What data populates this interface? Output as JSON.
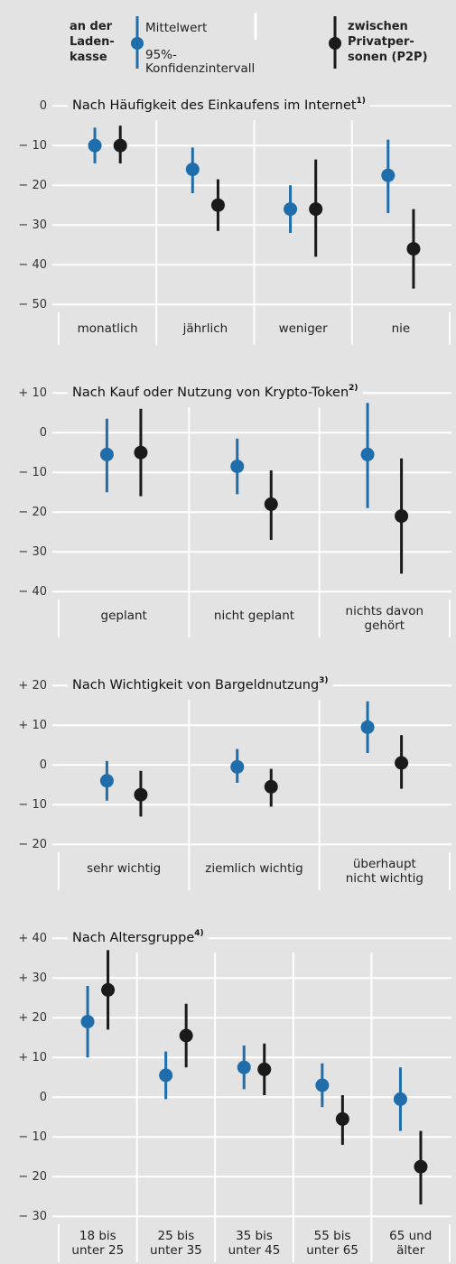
{
  "legend": {
    "series": [
      {
        "name": "an der\nLaden-\nkasse",
        "color": "#1f6eab"
      },
      {
        "name": "zwischen\nPrivatper-\nsonen (P2P)",
        "color": "#1a1a1a"
      }
    ],
    "mean": "Mittelwert",
    "ci": "95%-\nKonfidenzintervall"
  },
  "chart_data": [
    {
      "type": "errorbar",
      "title": "Nach Häufigkeit des Einkaufens im Internet",
      "title_note": "1)",
      "categories": [
        "monatlich",
        "jährlich",
        "weniger",
        "nie"
      ],
      "series": [
        {
          "values": [
            -10,
            -16,
            -26,
            -17.5
          ],
          "high": [
            -5.5,
            -10.5,
            -20,
            -8.5
          ],
          "low": [
            -14.5,
            -22,
            -32,
            -27
          ]
        },
        {
          "values": [
            -10,
            -25,
            -26,
            -36
          ],
          "high": [
            -5,
            -18.5,
            -13.5,
            -26
          ],
          "low": [
            -14.5,
            -31.5,
            -38,
            -46
          ]
        }
      ],
      "ylim": [
        -52,
        3
      ],
      "yticks": [
        0,
        {
          "value": -10,
          "label": "− 10"
        },
        {
          "value": -20,
          "label": "− 20"
        },
        {
          "value": -30,
          "label": "− 30"
        },
        {
          "value": -40,
          "label": "− 40"
        },
        {
          "value": -50,
          "label": "− 50"
        }
      ],
      "grid": true
    },
    {
      "type": "errorbar",
      "title": "Nach Kauf oder Nutzung von Krypto-Token",
      "title_note": "2)",
      "categories": [
        "geplant",
        "nicht geplant",
        "nichts davon\ngehört"
      ],
      "series": [
        {
          "values": [
            -5.5,
            -8.5,
            -5.5
          ],
          "high": [
            3.5,
            -1.5,
            7.5
          ],
          "low": [
            -15,
            -15.5,
            -19
          ]
        },
        {
          "values": [
            -5,
            -18,
            -21
          ],
          "high": [
            6,
            -9.5,
            -6.5
          ],
          "low": [
            -16,
            -27,
            -35.5
          ]
        }
      ],
      "ylim": [
        -42,
        13
      ],
      "yticks": [
        {
          "value": 10,
          "label": "+ 10"
        },
        0,
        {
          "value": -10,
          "label": "− 10"
        },
        {
          "value": -20,
          "label": "− 20"
        },
        {
          "value": -30,
          "label": "− 30"
        },
        {
          "value": -40,
          "label": "− 40"
        }
      ],
      "grid": true
    },
    {
      "type": "errorbar",
      "title": "Nach Wichtigkeit von Bargeldnutzung",
      "title_note": "3)",
      "categories": [
        "sehr wichtig",
        "ziemlich wichtig",
        "überhaupt\nnicht wichtig"
      ],
      "series": [
        {
          "values": [
            -4,
            -0.5,
            9.5
          ],
          "high": [
            1,
            4,
            16
          ],
          "low": [
            -9,
            -4.5,
            3
          ]
        },
        {
          "values": [
            -7.5,
            -5.5,
            0.5
          ],
          "high": [
            -1.5,
            -1,
            7.5
          ],
          "low": [
            -13,
            -10.5,
            -6
          ]
        }
      ],
      "ylim": [
        -22,
        23
      ],
      "yticks": [
        {
          "value": 20,
          "label": "+ 20"
        },
        {
          "value": 10,
          "label": "+ 10"
        },
        0,
        {
          "value": -10,
          "label": "− 10"
        },
        {
          "value": -20,
          "label": "− 20"
        }
      ],
      "grid": true
    },
    {
      "type": "errorbar",
      "title": "Nach Altersgruppe",
      "title_note": "4)",
      "categories": [
        "18 bis\nunter 25",
        "25 bis\nunter 35",
        "35 bis\nunter 45",
        "55 bis\nunter 65",
        "65 und\nälter"
      ],
      "series": [
        {
          "values": [
            19,
            5.5,
            7.5,
            3,
            -0.5
          ],
          "high": [
            28,
            11.5,
            13,
            8.5,
            7.5
          ],
          "low": [
            10,
            -0.5,
            2,
            -2.5,
            -8.5
          ]
        },
        {
          "values": [
            27,
            15.5,
            7,
            -5.5,
            -17.5
          ],
          "high": [
            37,
            23.5,
            13.5,
            0.5,
            -8.5
          ],
          "low": [
            17,
            7.5,
            0.5,
            -12,
            -27
          ]
        }
      ],
      "ylim": [
        -32,
        43
      ],
      "yticks": [
        {
          "value": 40,
          "label": "+ 40"
        },
        {
          "value": 30,
          "label": "+ 30"
        },
        {
          "value": 20,
          "label": "+ 20"
        },
        {
          "value": 10,
          "label": "+ 10"
        },
        0,
        {
          "value": -10,
          "label": "− 10"
        },
        {
          "value": -20,
          "label": "− 20"
        },
        {
          "value": -30,
          "label": "− 30"
        }
      ],
      "grid": true
    }
  ]
}
